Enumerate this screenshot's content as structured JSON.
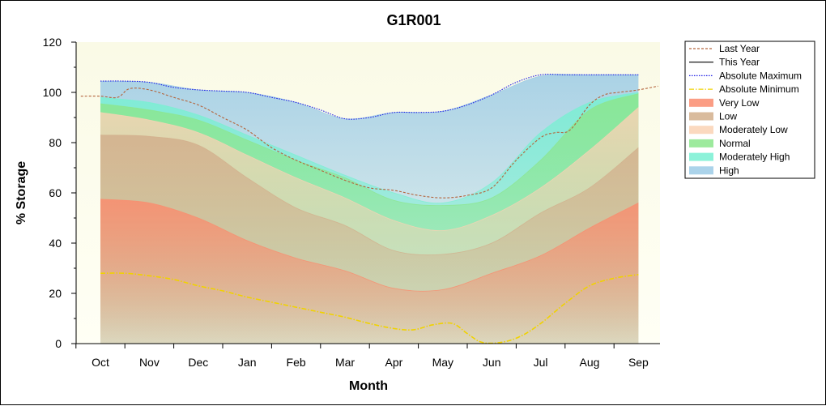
{
  "chart_data": {
    "type": "area",
    "title": "G1R001",
    "xlabel": "Month",
    "ylabel": "% Storage",
    "ylim": [
      0,
      120
    ],
    "yticks": [
      0,
      20,
      40,
      60,
      80,
      100,
      120
    ],
    "categories": [
      "Oct",
      "Nov",
      "Dec",
      "Jan",
      "Feb",
      "Mar",
      "Apr",
      "May",
      "Jun",
      "Jul",
      "Aug",
      "Sep"
    ],
    "legend_position": "right",
    "bands": [
      {
        "name": "Very Low",
        "color": "#fa8c6e",
        "values": [
          57.5,
          56,
          50,
          41,
          34,
          29,
          22,
          21.5,
          28,
          35,
          46,
          56
        ]
      },
      {
        "name": "Low",
        "color": "#d2af8c",
        "values": [
          83,
          82.5,
          79,
          66,
          54,
          47,
          37,
          35.5,
          40,
          52,
          62,
          78
        ]
      },
      {
        "name": "Moderately Low",
        "color": "#fad2b4",
        "values": [
          92,
          89,
          84,
          75,
          66,
          58,
          49,
          45,
          51,
          62,
          77,
          94
        ]
      },
      {
        "name": "Normal",
        "color": "#8ce68c",
        "values": [
          95.5,
          93,
          89,
          81,
          73,
          66,
          57,
          55,
          58,
          73,
          93,
          99.5
        ]
      },
      {
        "name": "Moderately High",
        "color": "#78f0d2",
        "values": [
          98,
          96,
          91,
          83,
          75,
          67,
          60,
          56,
          64,
          84,
          96,
          100
        ]
      },
      {
        "name": "High",
        "color": "#9ccbe6",
        "values": [
          104.5,
          104,
          101,
          100,
          96,
          89.5,
          92,
          92.5,
          99,
          106.5,
          107,
          107
        ]
      }
    ],
    "series": [
      {
        "name": "Last Year",
        "color": "#b4643c",
        "style": "dash",
        "x": [
          -0.4,
          0,
          0.35,
          0.6,
          1,
          1.5,
          2,
          2.5,
          3,
          3.5,
          4,
          4.5,
          5,
          5.5,
          6,
          6.5,
          7,
          7.5,
          8,
          8.5,
          9,
          9.3,
          9.6,
          10,
          10.3,
          10.6,
          11,
          11.4
        ],
        "y": [
          98.5,
          98.5,
          98,
          101.5,
          101,
          98,
          95,
          90,
          85,
          78,
          73,
          69,
          65,
          62,
          61,
          59,
          58,
          59,
          62,
          73,
          82,
          84,
          85,
          95,
          99,
          100,
          101,
          102.5
        ]
      },
      {
        "name": "This Year",
        "color": "#000000",
        "style": "solid",
        "x": [],
        "y": []
      },
      {
        "name": "Absolute Maximum",
        "color": "#1e1ee6",
        "style": "dot",
        "x": [
          0,
          0.5,
          1,
          1.5,
          2,
          2.5,
          3,
          3.5,
          4,
          4.5,
          5,
          5.5,
          6,
          6.5,
          7,
          7.5,
          8,
          8.5,
          9,
          9.5,
          10,
          10.5,
          11
        ],
        "y": [
          104.5,
          104.5,
          104,
          102,
          101,
          100.5,
          100,
          98,
          96,
          93,
          89.5,
          90,
          92,
          92,
          92.5,
          95,
          99,
          104,
          107,
          107,
          107,
          107,
          107
        ]
      },
      {
        "name": "Absolute Minimum",
        "color": "#f0d200",
        "style": "dashdot",
        "x": [
          0,
          0.5,
          1,
          1.5,
          2,
          2.5,
          3,
          3.5,
          4,
          4.5,
          5,
          5.5,
          6,
          6.4,
          6.8,
          7.2,
          7.5,
          7.8,
          8.2,
          8.6,
          9,
          9.5,
          10,
          10.5,
          11
        ],
        "y": [
          28,
          28,
          27,
          25.5,
          23,
          21,
          18.5,
          16.5,
          14.5,
          12.5,
          10.5,
          8,
          6,
          5.5,
          7.5,
          8,
          4,
          0.5,
          0.5,
          3,
          8,
          16,
          23,
          26,
          27.5
        ]
      }
    ],
    "legend": [
      "Last Year",
      "This Year",
      "Absolute Maximum",
      "Absolute Minimum",
      "Very Low",
      "Low",
      "Moderately Low",
      "Normal",
      "Moderately High",
      "High"
    ]
  }
}
